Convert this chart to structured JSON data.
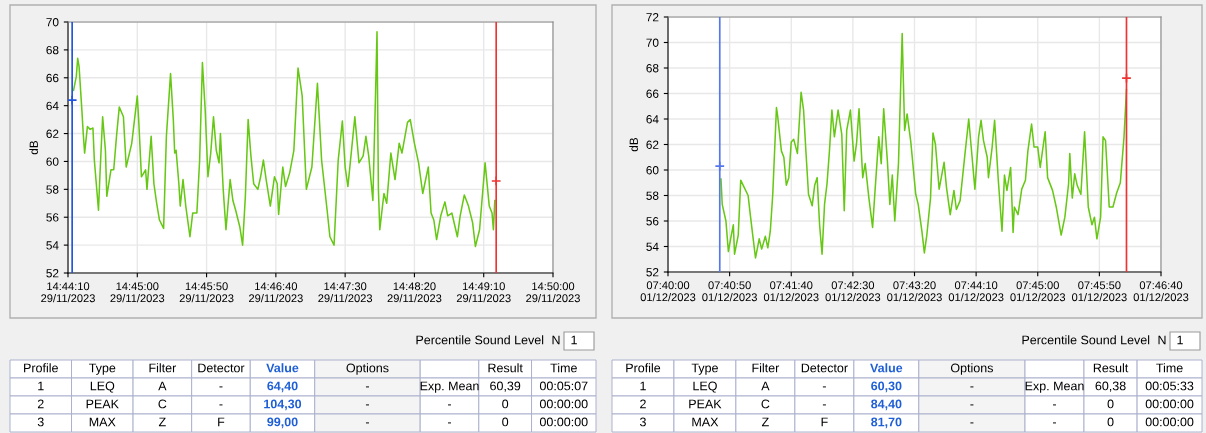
{
  "chart_data": [
    {
      "type": "line",
      "ylabel": "dB",
      "xlim": [
        "2023-11-29T14:44:10",
        "2023-11-29T14:50:00"
      ],
      "ylim": [
        52,
        70
      ],
      "yticks": [
        52,
        54,
        56,
        58,
        60,
        62,
        64,
        66,
        68,
        70
      ],
      "xticks": [
        {
          "value": "2023-11-29T14:44:10",
          "label": "14:44:10\n29/11/2023"
        },
        {
          "value": "2023-11-29T14:45:00",
          "label": "14:45:00\n29/11/2023"
        },
        {
          "value": "2023-11-29T14:45:50",
          "label": "14:45:50\n29/11/2023"
        },
        {
          "value": "2023-11-29T14:46:40",
          "label": "14:46:40\n29/11/2023"
        },
        {
          "value": "2023-11-29T14:47:30",
          "label": "14:47:30\n29/11/2023"
        },
        {
          "value": "2023-11-29T14:48:20",
          "label": "14:48:20\n29/11/2023"
        },
        {
          "value": "2023-11-29T14:49:10",
          "label": "14:49:10\n29/11/2023"
        },
        {
          "value": "2023-11-29T14:50:00",
          "label": "14:50:00\n29/11/2023"
        }
      ],
      "grid": true,
      "series": [
        {
          "color": "#66c814",
          "x": [
            "2023-11-29T14:44:14",
            "2023-11-29T14:44:16",
            "2023-11-29T14:44:17",
            "2023-11-29T14:44:18",
            "2023-11-29T14:44:20",
            "2023-11-29T14:44:21",
            "2023-11-29T14:44:22",
            "2023-11-29T14:44:24",
            "2023-11-29T14:44:26",
            "2023-11-29T14:44:28",
            "2023-11-29T14:44:29",
            "2023-11-29T14:44:32",
            "2023-11-29T14:44:33",
            "2023-11-29T14:44:35",
            "2023-11-29T14:44:37",
            "2023-11-29T14:44:38",
            "2023-11-29T14:44:41",
            "2023-11-29T14:44:43",
            "2023-11-29T14:44:45",
            "2023-11-29T14:44:47",
            "2023-11-29T14:44:50",
            "2023-11-29T14:44:52",
            "2023-11-29T14:44:56",
            "2023-11-29T14:45:00",
            "2023-11-29T14:45:01",
            "2023-11-29T14:45:03",
            "2023-11-29T14:45:06",
            "2023-11-29T14:45:07",
            "2023-11-29T14:45:10",
            "2023-11-29T14:45:12",
            "2023-11-29T14:45:14",
            "2023-11-29T14:45:16",
            "2023-11-29T14:45:19",
            "2023-11-29T14:45:21",
            "2023-11-29T14:45:24",
            "2023-11-29T14:45:26",
            "2023-11-29T14:45:27",
            "2023-11-29T14:45:28",
            "2023-11-29T14:45:30",
            "2023-11-29T14:45:31",
            "2023-11-29T14:45:33",
            "2023-11-29T14:45:35",
            "2023-11-29T14:45:38",
            "2023-11-29T14:45:40",
            "2023-11-29T14:45:43",
            "2023-11-29T14:45:45",
            "2023-11-29T14:45:47",
            "2023-11-29T14:45:49",
            "2023-11-29T14:45:51",
            "2023-11-29T14:45:53",
            "2023-11-29T14:45:55",
            "2023-11-29T14:45:57",
            "2023-11-29T14:45:59",
            "2023-11-29T14:46:00",
            "2023-11-29T14:46:02",
            "2023-11-29T14:46:04",
            "2023-11-29T14:46:07",
            "2023-11-29T14:46:09",
            "2023-11-29T14:46:11",
            "2023-11-29T14:46:14",
            "2023-11-29T14:46:16",
            "2023-11-29T14:46:18",
            "2023-11-29T14:46:20",
            "2023-11-29T14:46:22",
            "2023-11-29T14:46:24",
            "2023-11-29T14:46:27",
            "2023-11-29T14:46:29",
            "2023-11-29T14:46:31",
            "2023-11-29T14:46:33",
            "2023-11-29T14:46:36",
            "2023-11-29T14:46:39",
            "2023-11-29T14:46:41",
            "2023-11-29T14:46:42",
            "2023-11-29T14:46:45",
            "2023-11-29T14:46:47",
            "2023-11-29T14:46:50",
            "2023-11-29T14:46:53",
            "2023-11-29T14:46:56",
            "2023-11-29T14:46:59",
            "2023-11-29T14:47:02",
            "2023-11-29T14:47:06",
            "2023-11-29T14:47:10",
            "2023-11-29T14:47:13",
            "2023-11-29T14:47:17",
            "2023-11-29T14:47:19",
            "2023-11-29T14:47:22",
            "2023-11-29T14:47:25",
            "2023-11-29T14:47:28",
            "2023-11-29T14:47:30",
            "2023-11-29T14:47:32",
            "2023-11-29T14:47:37",
            "2023-11-29T14:47:40",
            "2023-11-29T14:47:43",
            "2023-11-29T14:47:45",
            "2023-11-29T14:47:47",
            "2023-11-29T14:47:50",
            "2023-11-29T14:47:52",
            "2023-11-29T14:47:53",
            "2023-11-29T14:47:54",
            "2023-11-29T14:47:55",
            "2023-11-29T14:47:58",
            "2023-11-29T14:48:00",
            "2023-11-29T14:48:03",
            "2023-11-29T14:48:06",
            "2023-11-29T14:48:09",
            "2023-11-29T14:48:11",
            "2023-11-29T14:48:15",
            "2023-11-29T14:48:17",
            "2023-11-29T14:48:20",
            "2023-11-29T14:48:23",
            "2023-11-29T14:48:26",
            "2023-11-29T14:48:30",
            "2023-11-29T14:48:32",
            "2023-11-29T14:48:34",
            "2023-11-29T14:48:36",
            "2023-11-29T14:48:39",
            "2023-11-29T14:48:42",
            "2023-11-29T14:48:44",
            "2023-11-29T14:48:47",
            "2023-11-29T14:48:51",
            "2023-11-29T14:48:53",
            "2023-11-29T14:48:56",
            "2023-11-29T14:48:59",
            "2023-11-29T14:49:02",
            "2023-11-29T14:49:04",
            "2023-11-29T14:49:07",
            "2023-11-29T14:49:11",
            "2023-11-29T14:49:14",
            "2023-11-29T14:49:16",
            "2023-11-29T14:49:17",
            "2023-11-29T14:49:18"
          ],
          "values": [
            65.1,
            66.1,
            67.4,
            66.8,
            63.7,
            62.0,
            60.6,
            62.5,
            62.3,
            62.4,
            60.1,
            56.5,
            58.9,
            63.2,
            60.8,
            57.5,
            59.4,
            59.4,
            61.8,
            63.9,
            63.2,
            59.6,
            61.3,
            64.7,
            63.0,
            58.9,
            59.4,
            58.0,
            61.8,
            58.4,
            57.0,
            55.8,
            55.2,
            61.8,
            66.3,
            63.0,
            60.6,
            60.8,
            58.4,
            56.8,
            58.7,
            56.8,
            54.6,
            56.3,
            56.3,
            60.1,
            67.1,
            63.7,
            58.9,
            60.6,
            63.2,
            60.8,
            59.9,
            62.0,
            58.0,
            55.1,
            58.7,
            57.2,
            56.5,
            55.3,
            54.0,
            57.5,
            63.0,
            60.4,
            58.4,
            58.0,
            58.9,
            60.1,
            58.7,
            56.8,
            58.9,
            58.4,
            56.2,
            59.6,
            58.2,
            59.2,
            60.8,
            66.7,
            64.7,
            58.0,
            59.6,
            65.6,
            60.1,
            56.5,
            54.6,
            54.0,
            60.1,
            62.9,
            59.6,
            58.2,
            63.2,
            59.9,
            60.4,
            61.8,
            60.4,
            57.2,
            65.1,
            69.3,
            58.0,
            55.1,
            57.7,
            57.0,
            60.6,
            58.7,
            61.3,
            60.6,
            62.8,
            63.0,
            61.3,
            59.9,
            57.7,
            59.6,
            56.3,
            55.8,
            54.4,
            56.1,
            57.1,
            56.1,
            56.3,
            54.6,
            56.1,
            57.6,
            56.8,
            55.6,
            53.9,
            55.1,
            59.9,
            56.8,
            56.3,
            55.1,
            57.2
          ]
        },
        {
          "type": "scatter",
          "marker": "cross",
          "x": [
            "2023-11-29T14:44:13",
            "2023-11-29T14:49:19"
          ],
          "values": [
            64.4,
            58.6
          ],
          "colors": [
            "#2255dd",
            "#ee3333"
          ]
        }
      ],
      "ref_lines": [
        {
          "axis": "x",
          "value": "2023-11-29T14:44:13",
          "color": "#2255dd"
        },
        {
          "axis": "x",
          "value": "2023-11-29T14:49:19",
          "color": "#ee3333"
        }
      ],
      "annotations": [
        "Percentile Sound Level",
        "N",
        "1",
        "Profile",
        "Type",
        "Filter",
        "Detector",
        "Value",
        "Options",
        "Result",
        "Time",
        "1",
        "LEQ",
        "A",
        "-",
        "64,40",
        "-",
        "Exp. Mean",
        "60,39",
        "00:05:07",
        "2",
        "PEAK",
        "C",
        "-",
        "104,30",
        "-",
        "-",
        "0",
        "00:00:00",
        "3",
        "MAX",
        "Z",
        "F",
        "99,00",
        "-",
        "-",
        "0",
        "00:00:00"
      ]
    },
    {
      "type": "line",
      "ylabel": "dB",
      "xlim": [
        "2023-12-01T07:40:00",
        "2023-12-01T07:46:40"
      ],
      "ylim": [
        52,
        72
      ],
      "yticks": [
        52,
        54,
        56,
        58,
        60,
        62,
        64,
        66,
        68,
        70,
        72
      ],
      "xticks": [
        {
          "value": "2023-12-01T07:40:00",
          "label": "07:40:00\n01/12/2023"
        },
        {
          "value": "2023-12-01T07:40:50",
          "label": "07:40:50\n01/12/2023"
        },
        {
          "value": "2023-12-01T07:41:40",
          "label": "07:41:40\n01/12/2023"
        },
        {
          "value": "2023-12-01T07:42:30",
          "label": "07:42:30\n01/12/2023"
        },
        {
          "value": "2023-12-01T07:43:20",
          "label": "07:43:20\n01/12/2023"
        },
        {
          "value": "2023-12-01T07:44:10",
          "label": "07:44:10\n01/12/2023"
        },
        {
          "value": "2023-12-01T07:45:00",
          "label": "07:45:00\n01/12/2023"
        },
        {
          "value": "2023-12-01T07:45:50",
          "label": "07:45:50\n01/12/2023"
        },
        {
          "value": "2023-12-01T07:46:40",
          "label": "07:46:40\n01/12/2023"
        }
      ],
      "grid": true,
      "series": [
        {
          "color": "#66c814",
          "x": [
            "2023-12-01T07:40:43",
            "2023-12-01T07:40:44",
            "2023-12-01T07:40:47",
            "2023-12-01T07:40:49",
            "2023-12-01T07:40:51",
            "2023-12-01T07:40:53",
            "2023-12-01T07:40:54",
            "2023-12-01T07:40:57",
            "2023-12-01T07:40:59",
            "2023-12-01T07:41:02",
            "2023-12-01T07:41:05",
            "2023-12-01T07:41:07",
            "2023-12-01T07:41:09",
            "2023-12-01T07:41:11",
            "2023-12-01T07:41:14",
            "2023-12-01T07:41:16",
            "2023-12-01T07:41:19",
            "2023-12-01T07:41:21",
            "2023-12-01T07:41:23",
            "2023-12-01T07:41:25",
            "2023-12-01T07:41:28",
            "2023-12-01T07:41:29",
            "2023-12-01T07:41:32",
            "2023-12-01T07:41:34",
            "2023-12-01T07:41:36",
            "2023-12-01T07:41:38",
            "2023-12-01T07:41:40",
            "2023-12-01T07:41:42",
            "2023-12-01T07:41:45",
            "2023-12-01T07:41:48",
            "2023-12-01T07:41:50",
            "2023-12-01T07:41:52",
            "2023-12-01T07:41:54",
            "2023-12-01T07:41:57",
            "2023-12-01T07:41:59",
            "2023-12-01T07:42:01",
            "2023-12-01T07:42:03",
            "2023-12-01T07:42:05",
            "2023-12-01T07:42:07",
            "2023-12-01T07:42:09",
            "2023-12-01T07:42:11",
            "2023-12-01T07:42:13",
            "2023-12-01T07:42:15",
            "2023-12-01T07:42:18",
            "2023-12-01T07:42:21",
            "2023-12-01T07:42:23",
            "2023-12-01T07:42:25",
            "2023-12-01T07:42:28",
            "2023-12-01T07:42:31",
            "2023-12-01T07:42:33",
            "2023-12-01T07:42:35",
            "2023-12-01T07:42:38",
            "2023-12-01T07:42:40",
            "2023-12-01T07:42:43",
            "2023-12-01T07:42:46",
            "2023-12-01T07:42:48",
            "2023-12-01T07:42:51",
            "2023-12-01T07:42:53",
            "2023-12-01T07:42:55",
            "2023-12-01T07:42:58",
            "2023-12-01T07:43:00",
            "2023-12-01T07:43:02",
            "2023-12-01T07:43:04",
            "2023-12-01T07:43:07",
            "2023-12-01T07:43:10",
            "2023-12-01T07:43:12",
            "2023-12-01T07:43:14",
            "2023-12-01T07:43:17",
            "2023-12-01T07:43:21",
            "2023-12-01T07:43:23",
            "2023-12-01T07:43:26",
            "2023-12-01T07:43:28",
            "2023-12-01T07:43:30",
            "2023-12-01T07:43:33",
            "2023-12-01T07:43:35",
            "2023-12-01T07:43:37",
            "2023-12-01T07:43:40",
            "2023-12-01T07:43:44",
            "2023-12-01T07:43:46",
            "2023-12-01T07:43:49",
            "2023-12-01T07:43:52",
            "2023-12-01T07:43:54",
            "2023-12-01T07:43:57",
            "2023-12-01T07:44:01",
            "2023-12-01T07:44:04",
            "2023-12-01T07:44:06",
            "2023-12-01T07:44:09",
            "2023-12-01T07:44:12",
            "2023-12-01T07:44:14",
            "2023-12-01T07:44:16",
            "2023-12-01T07:44:19",
            "2023-12-01T07:44:20",
            "2023-12-01T07:44:23",
            "2023-12-01T07:44:25",
            "2023-12-01T07:44:28",
            "2023-12-01T07:44:31",
            "2023-12-01T07:44:33",
            "2023-12-01T07:44:35",
            "2023-12-01T07:44:38",
            "2023-12-01T07:44:40",
            "2023-12-01T07:44:41",
            "2023-12-01T07:44:44",
            "2023-12-01T07:44:47",
            "2023-12-01T07:44:50",
            "2023-12-01T07:44:52",
            "2023-12-01T07:44:55",
            "2023-12-01T07:44:57",
            "2023-12-01T07:45:00",
            "2023-12-01T07:45:02",
            "2023-12-01T07:45:06",
            "2023-12-01T07:45:08",
            "2023-12-01T07:45:12",
            "2023-12-01T07:45:15",
            "2023-12-01T07:45:19",
            "2023-12-01T07:45:22",
            "2023-12-01T07:45:25",
            "2023-12-01T07:45:26",
            "2023-12-01T07:45:28",
            "2023-12-01T07:45:30",
            "2023-12-01T07:45:32",
            "2023-12-01T07:45:35",
            "2023-12-01T07:45:38",
            "2023-12-01T07:45:41",
            "2023-12-01T07:45:44",
            "2023-12-01T07:45:46",
            "2023-12-01T07:45:48",
            "2023-12-01T07:45:51",
            "2023-12-01T07:45:53",
            "2023-12-01T07:45:55",
            "2023-12-01T07:45:58",
            "2023-12-01T07:46:01",
            "2023-12-01T07:46:04",
            "2023-12-01T07:46:07",
            "2023-12-01T07:46:10",
            "2023-12-01T07:46:12"
          ],
          "values": [
            59.3,
            57.3,
            56.0,
            53.6,
            54.7,
            55.7,
            53.4,
            54.9,
            59.2,
            58.6,
            58.0,
            56.3,
            54.7,
            53.1,
            54.6,
            53.8,
            54.8,
            53.9,
            55.2,
            58.1,
            64.9,
            64.2,
            61.5,
            61.0,
            58.8,
            59.4,
            62.2,
            62.4,
            61.3,
            66.1,
            64.7,
            61.3,
            58.1,
            57.2,
            58.8,
            59.4,
            55.7,
            53.4,
            57.3,
            58.9,
            61.5,
            64.7,
            62.6,
            64.7,
            62.8,
            56.8,
            63.1,
            64.7,
            60.7,
            62.1,
            64.8,
            59.4,
            60.5,
            57.8,
            55.5,
            58.4,
            62.6,
            60.5,
            64.8,
            60.7,
            57.3,
            59.6,
            56.0,
            60.5,
            70.7,
            63.1,
            64.4,
            62.2,
            58.1,
            57.3,
            55.2,
            53.5,
            54.9,
            57.8,
            62.9,
            62.0,
            58.5,
            60.6,
            58.6,
            56.5,
            58.4,
            56.9,
            57.6,
            61.3,
            64.0,
            61.8,
            58.5,
            62.6,
            63.9,
            62.3,
            61.0,
            59.4,
            61.8,
            63.9,
            59.2,
            55.2,
            59.6,
            58.4,
            60.2,
            55.1,
            57.1,
            56.5,
            58.5,
            59.2,
            61.5,
            63.6,
            61.8,
            61.8,
            60.2,
            63.0,
            59.4,
            58.4,
            57.1,
            54.9,
            56.3,
            58.9,
            61.3,
            57.8,
            59.7,
            58.8,
            58.1,
            63.0,
            57.1,
            55.7,
            56.3,
            54.6,
            56.3,
            62.6,
            62.3,
            57.1,
            57.1,
            58.2,
            59.0,
            62.6,
            66.3
          ]
        },
        {
          "type": "scatter",
          "marker": "cross",
          "x": [
            "2023-12-01T07:40:42",
            "2023-12-01T07:46:12"
          ],
          "values": [
            60.3,
            67.2
          ],
          "colors": [
            "#5577ee",
            "#ee3333"
          ]
        }
      ],
      "ref_lines": [
        {
          "axis": "x",
          "value": "2023-12-01T07:40:42",
          "color": "#5577ee"
        },
        {
          "axis": "x",
          "value": "2023-12-01T07:46:12",
          "color": "#ee3333"
        }
      ],
      "annotations": [
        "Percentile Sound Level",
        "N",
        "1",
        "Profile",
        "Type",
        "Filter",
        "Detector",
        "Value",
        "Options",
        "Result",
        "Time",
        "1",
        "LEQ",
        "A",
        "-",
        "60,30",
        "-",
        "Exp. Mean",
        "60,38",
        "00:05:33",
        "2",
        "PEAK",
        "C",
        "-",
        "84,40",
        "-",
        "-",
        "0",
        "00:00:00",
        "3",
        "MAX",
        "Z",
        "F",
        "81,70",
        "-",
        "-",
        "0",
        "00:00:00"
      ]
    }
  ]
}
